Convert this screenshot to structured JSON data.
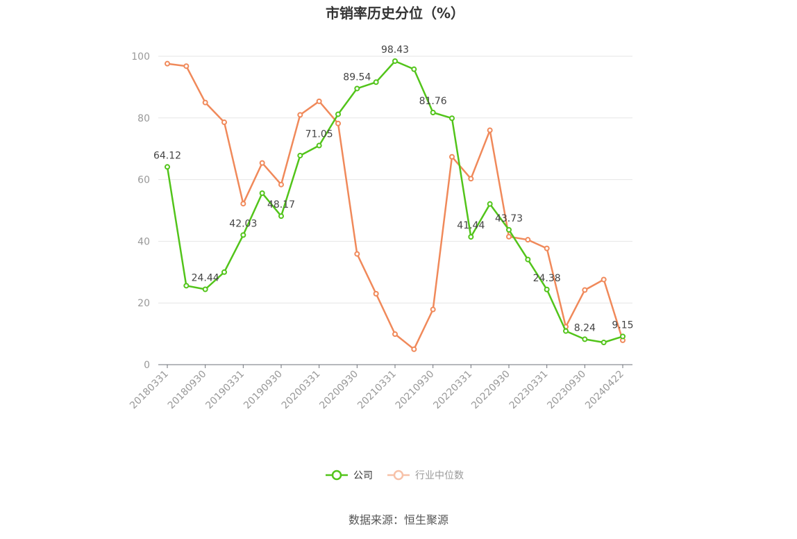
{
  "chart_data": {
    "type": "line",
    "title": "市销率历史分位（%）",
    "xlabel": "",
    "ylabel": "",
    "ylim": [
      0,
      100
    ],
    "yticks": [
      "0",
      "20",
      "40",
      "60",
      "80",
      "100"
    ],
    "grid": true,
    "legend_position": "bottom",
    "x": [
      "20180331",
      "20180630",
      "20180930",
      "20181231",
      "20190331",
      "20190630",
      "20190930",
      "20191231",
      "20200331",
      "20200630",
      "20200930",
      "20201231",
      "20210331",
      "20210630",
      "20210930",
      "20211231",
      "20220331",
      "20220630",
      "20220930",
      "20221231",
      "20230331",
      "20230630",
      "20230930",
      "20231231",
      "20240422"
    ],
    "xtick_labels": [
      "20180331",
      "20180930",
      "20190331",
      "20190930",
      "20200331",
      "20200930",
      "20210331",
      "20210930",
      "20220331",
      "20220930",
      "20230331",
      "20230930",
      "20240422"
    ],
    "series": [
      {
        "name": "公司",
        "color": "#52c41a",
        "values": [
          64.12,
          25.6,
          24.44,
          30.0,
          42.03,
          55.6,
          48.17,
          67.8,
          71.05,
          81.2,
          89.54,
          91.6,
          98.43,
          95.8,
          81.76,
          79.9,
          41.44,
          52.1,
          43.73,
          34.1,
          24.38,
          10.9,
          8.24,
          7.2,
          9.15
        ],
        "labels": {
          "0": "64.12",
          "2": "24.44",
          "4": "42.03",
          "6": "48.17",
          "8": "71.05",
          "10": "89.54",
          "12": "98.43",
          "14": "81.76",
          "16": "41.44",
          "18": "43.73",
          "20": "24.38",
          "22": "8.24",
          "24": "9.15"
        }
      },
      {
        "name": "行业中位数",
        "color": "#f0895a",
        "values": [
          97.6,
          96.8,
          85.0,
          78.6,
          52.2,
          65.4,
          58.4,
          81.0,
          85.4,
          78.2,
          35.9,
          23.0,
          9.9,
          5.0,
          17.9,
          67.4,
          60.3,
          76.0,
          41.5,
          40.5,
          37.7,
          12.3,
          24.2,
          27.6,
          7.9
        ]
      }
    ]
  },
  "legend": {
    "company": "公司",
    "industry": "行业中位数"
  },
  "source": "数据来源：恒生聚源"
}
